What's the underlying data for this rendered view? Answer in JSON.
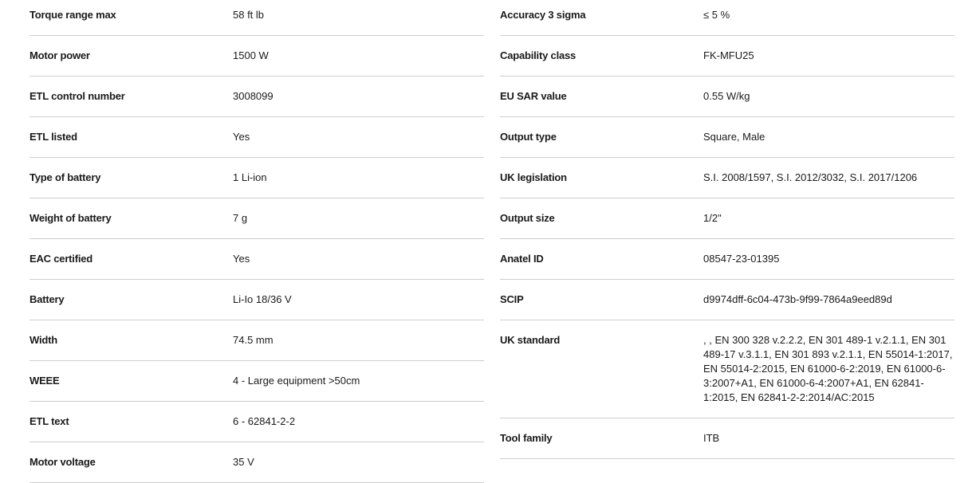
{
  "left": [
    {
      "label": "Torque range max",
      "value": "58 ft lb"
    },
    {
      "label": "Motor power",
      "value": "1500 W"
    },
    {
      "label": "ETL control number",
      "value": "3008099"
    },
    {
      "label": "ETL listed",
      "value": "Yes"
    },
    {
      "label": "Type of battery",
      "value": "1 Li-ion"
    },
    {
      "label": "Weight of battery",
      "value": "7 g"
    },
    {
      "label": "EAC certified",
      "value": "Yes"
    },
    {
      "label": "Battery",
      "value": "Li-Io 18/36 V"
    },
    {
      "label": "Width",
      "value": "74.5 mm"
    },
    {
      "label": "WEEE",
      "value": "4 - Large equipment >50cm"
    },
    {
      "label": "ETL text",
      "value": "6 - 62841-2-2"
    },
    {
      "label": "Motor voltage",
      "value": "35 V"
    }
  ],
  "right": [
    {
      "label": "Accuracy 3 sigma",
      "value": "≤ 5 %"
    },
    {
      "label": "Capability class",
      "value": "FK-MFU25"
    },
    {
      "label": "EU SAR value",
      "value": "0.55 W/kg"
    },
    {
      "label": "Output type",
      "value": "Square, Male"
    },
    {
      "label": "UK legislation",
      "value": "S.I. 2008/1597, S.I. 2012/3032, S.I. 2017/1206"
    },
    {
      "label": "Output size",
      "value": "1/2\""
    },
    {
      "label": "Anatel ID",
      "value": "08547-23-01395"
    },
    {
      "label": "SCIP",
      "value": "d9974dff-6c04-473b-9f99-7864a9eed89d"
    },
    {
      "label": "UK standard",
      "value": ", , EN 300 328 v.2.2.2, EN 301 489-1 v.2.1.1, EN 301 489-17 v.3.1.1, EN 301 893 v.2.1.1, EN 55014-1:2017, EN 55014-2:2015, EN 61000-6-2:2019, EN 61000-6-3:2007+A1, EN 61000-6-4:2007+A1, EN 62841-1:2015, EN 62841-2-2:2014/AC:2015"
    },
    {
      "label": "Tool family",
      "value": "ITB"
    }
  ]
}
